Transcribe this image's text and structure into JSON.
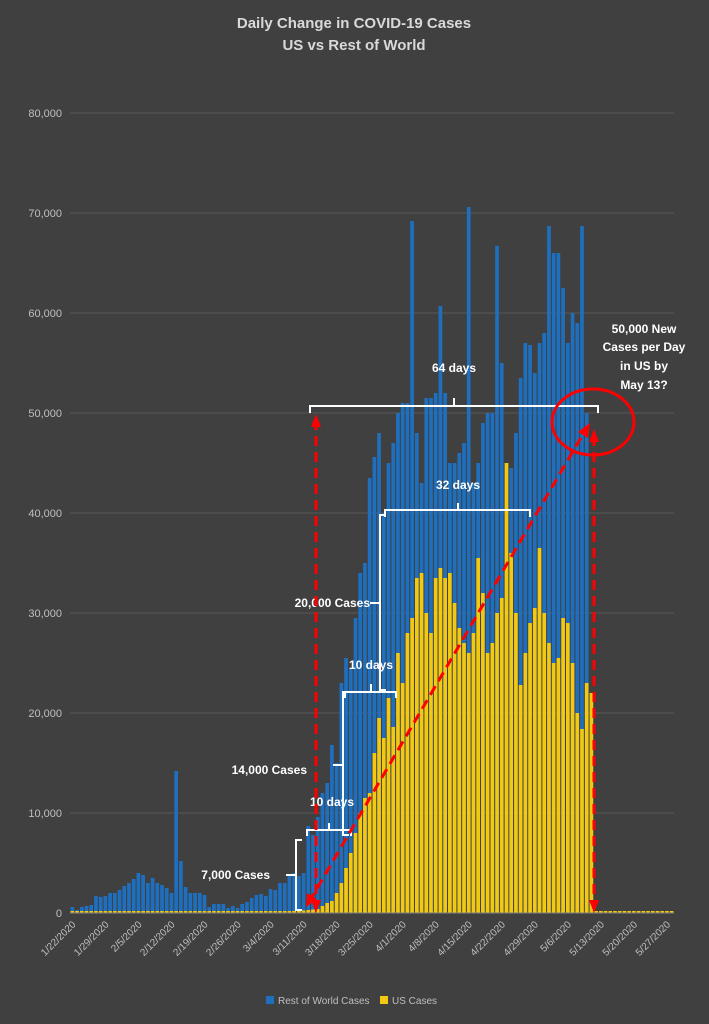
{
  "colors": {
    "background": "#404040",
    "grid": "#595959",
    "rest_of_world": "#1f6fbf",
    "us": "#f2c811",
    "annotation_line": "#ffffff",
    "annotation_arrow": "#ff0000"
  },
  "chart_data": {
    "type": "bar",
    "title": "Daily Change in COVID-19 Cases",
    "subtitle": "US vs Rest of World",
    "ylim": [
      0,
      80000
    ],
    "yticks": [
      "0",
      "10,000",
      "20,000",
      "30,000",
      "40,000",
      "50,000",
      "60,000",
      "70,000",
      "80,000"
    ],
    "ytick_values": [
      0,
      10000,
      20000,
      30000,
      40000,
      50000,
      60000,
      70000,
      80000
    ],
    "x_start": "1/22/2020",
    "xticks": [
      "1/22/2020",
      "1/29/2020",
      "2/5/2020",
      "2/12/2020",
      "2/19/2020",
      "2/26/2020",
      "3/4/2020",
      "3/11/2020",
      "3/18/2020",
      "3/25/2020",
      "4/1/2020",
      "4/8/2020",
      "4/15/2020",
      "4/22/2020",
      "4/29/2020",
      "5/6/2020",
      "5/13/2020",
      "5/20/2020",
      "5/27/2020"
    ],
    "legend_position": "bottom",
    "series": [
      {
        "name": "Rest of World Cases",
        "values": [
          600,
          300,
          600,
          700,
          800,
          1700,
          1600,
          1700,
          2000,
          2000,
          2300,
          2700,
          3000,
          3400,
          4000,
          3800,
          3000,
          3500,
          3000,
          2800,
          2500,
          2000,
          14200,
          5200,
          2600,
          2000,
          2000,
          2000,
          1800,
          600,
          900,
          900,
          900,
          500,
          700,
          500,
          900,
          1100,
          1500,
          1800,
          1900,
          1700,
          2400,
          2300,
          3000,
          3000,
          3800,
          4000,
          3700,
          4000,
          8700,
          7800,
          9600,
          12000,
          13000,
          16800,
          15000,
          23000,
          25500,
          24500,
          29500,
          34000,
          35000,
          43500,
          45600,
          48000,
          40000,
          45000,
          47000,
          50000,
          51000,
          51000,
          69200,
          48000,
          43000,
          51500,
          51500,
          52000,
          60700,
          52000,
          45000,
          45000,
          46000,
          47000,
          70600,
          43000,
          45000,
          49000,
          50000,
          50000,
          66700,
          55000,
          45000,
          44500,
          48000,
          53500,
          57000,
          56800,
          54000,
          57000,
          58000,
          68700,
          66000,
          66000,
          62500,
          57000,
          60000,
          59000,
          68700,
          50000
        ]
      },
      {
        "name": "US Cases",
        "values": [
          0,
          0,
          0,
          0,
          0,
          0,
          0,
          0,
          0,
          0,
          0,
          0,
          0,
          0,
          0,
          0,
          0,
          0,
          0,
          0,
          0,
          0,
          0,
          0,
          0,
          0,
          0,
          0,
          0,
          0,
          0,
          0,
          0,
          0,
          0,
          0,
          0,
          0,
          0,
          0,
          0,
          0,
          0,
          0,
          0,
          50,
          100,
          150,
          200,
          250,
          300,
          350,
          400,
          700,
          1000,
          1200,
          2000,
          3000,
          4500,
          6000,
          8000,
          10000,
          11500,
          12000,
          16000,
          19500,
          17500,
          21500,
          18600,
          26000,
          23000,
          28000,
          29500,
          33500,
          34000,
          30000,
          28000,
          33500,
          34500,
          33500,
          34000,
          31000,
          28500,
          27000,
          26000,
          28000,
          35500,
          32000,
          26000,
          27000,
          30000,
          31500,
          45000,
          36000,
          30000,
          22800,
          26000,
          29000,
          30500,
          36500,
          30000,
          27000,
          25000,
          25500,
          29500,
          29000,
          25000,
          20000,
          18400,
          23000,
          22000
        ]
      }
    ]
  },
  "annotations": {
    "days_64": "64 days",
    "days_32": "32 days",
    "days_10_upper": "10 days",
    "days_10_lower": "10 days",
    "cases_20000": "20,000 Cases",
    "cases_14000": "14,000 Cases",
    "cases_7000": "7,000 Cases",
    "callout_line1": "50,000 New",
    "callout_line2": "Cases per Day",
    "callout_line3": "in US by",
    "callout_line4": "May 13?"
  }
}
